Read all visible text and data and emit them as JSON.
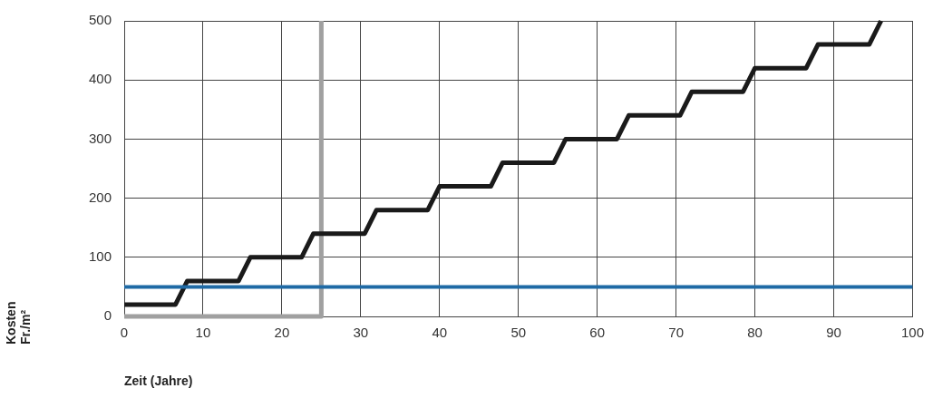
{
  "chart_data": {
    "type": "line",
    "xlabel": "Zeit (Jahre)",
    "ylabel": "Kosten\nFr./m²",
    "xlim": [
      0,
      100
    ],
    "xticks": [
      0,
      10,
      20,
      30,
      40,
      50,
      60,
      70,
      80,
      90,
      100
    ],
    "ylim": [
      0,
      500
    ],
    "yticks": [
      0,
      100,
      200,
      300,
      400,
      500
    ],
    "grid": true,
    "legend": false,
    "marker": "none",
    "line_style": "solid",
    "series": [
      {
        "color": "#1a1a1a",
        "x": [
          0,
          6.5,
          8,
          14.5,
          16,
          22.5,
          24,
          30.5,
          32,
          38.5,
          40,
          46.5,
          48,
          54.5,
          56,
          62.5,
          64,
          70.5,
          72,
          78.5,
          80,
          86.5,
          88,
          94.5,
          96
        ],
        "values": [
          20,
          20,
          60,
          60,
          100,
          100,
          140,
          140,
          180,
          180,
          220,
          220,
          260,
          260,
          300,
          300,
          340,
          340,
          380,
          380,
          420,
          420,
          460,
          460,
          500
        ]
      },
      {
        "color": "#a0a0a0",
        "x": [
          0,
          25,
          25
        ],
        "values": [
          0,
          0,
          500
        ]
      }
    ],
    "ref_lines": [
      {
        "axis": "y",
        "value": 50,
        "color": "#1f6aa5"
      }
    ]
  }
}
